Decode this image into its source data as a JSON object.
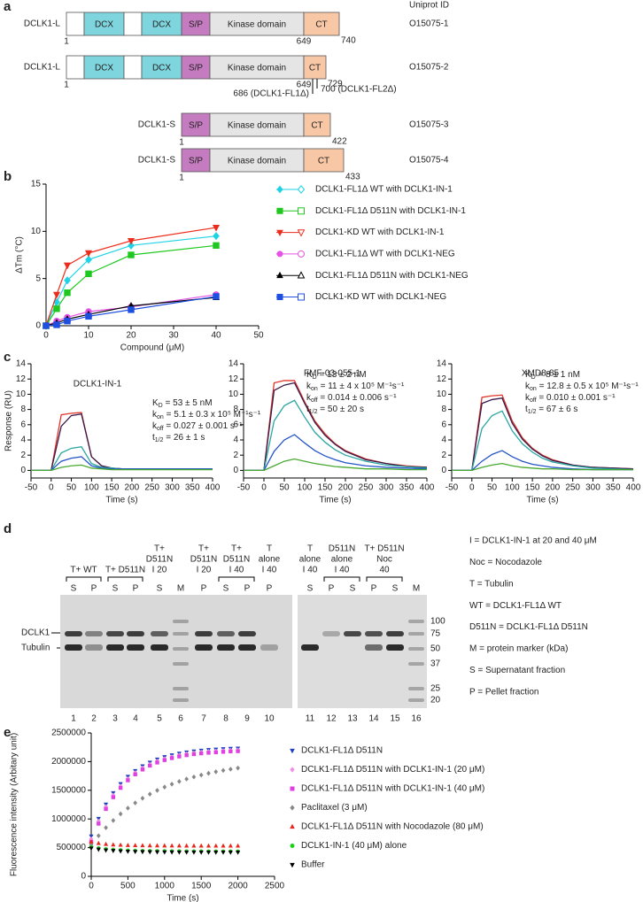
{
  "panel_a": {
    "panel_label": "a",
    "column_header": "Uniprot ID",
    "constructs": [
      {
        "name": "DCLK1-L",
        "domains": [
          "DCX",
          "DCX",
          "S/P",
          "Kinase domain",
          "CT"
        ],
        "start": 1,
        "mid": 649,
        "end": 740,
        "uniprot": "O15075-1"
      },
      {
        "name": "DCLK1-L",
        "domains": [
          "DCX",
          "DCX",
          "S/P",
          "Kinase domain",
          "CT"
        ],
        "start": 1,
        "mid": 649,
        "end": 729,
        "uniprot": "O15075-2"
      },
      {
        "name": "DCLK1-S",
        "domains": [
          "S/P",
          "Kinase domain",
          "CT"
        ],
        "start": 1,
        "end": 422,
        "uniprot": "O15075-3"
      },
      {
        "name": "DCLK1-S",
        "domains": [
          "S/P",
          "Kinase domain",
          "CT"
        ],
        "start": 1,
        "end": 433,
        "uniprot": "O15075-4"
      }
    ],
    "truncations": [
      "686 (DCLK1-FL1Δ)",
      "700 (DCLK1-FL2Δ)"
    ]
  },
  "chart_data": [
    {
      "type": "line",
      "panel_label": "b",
      "x_label": "Compound (μM)",
      "y_label": "ΔTm (°C)",
      "x": [
        0,
        2.5,
        5,
        10,
        20,
        40
      ],
      "xlim": [
        0,
        50
      ],
      "xticks": [
        0,
        10,
        20,
        30,
        40,
        50
      ],
      "ylim": [
        0,
        15
      ],
      "yticks": [
        0,
        5,
        10,
        15
      ],
      "series": [
        {
          "name": "DCLK1-FL1Δ WT with DCLK1-IN-1",
          "color": "#1fd3e6",
          "marker": "diamond",
          "values": [
            0,
            2.5,
            4.8,
            7.0,
            8.5,
            9.5
          ]
        },
        {
          "name": "DCLK1-FL1Δ D511N with DCLK1-IN-1",
          "color": "#1ec81e",
          "marker": "square",
          "values": [
            0,
            1.8,
            3.5,
            5.5,
            7.5,
            8.5
          ]
        },
        {
          "name": "DCLK1-KD WT with DCLK1-IN-1",
          "color": "#ee2a1a",
          "marker": "triangle-down",
          "values": [
            0,
            3.3,
            6.4,
            7.7,
            9.0,
            10.4
          ]
        },
        {
          "name": "DCLK1-FL1Δ WT with DCLK1-NEG",
          "color": "#e652e6",
          "marker": "circle",
          "values": [
            0,
            0.5,
            0.9,
            1.5,
            2.0,
            3.3
          ]
        },
        {
          "name": "DCLK1-FL1Δ D511N with DCLK1-NEG",
          "color": "#000000",
          "marker": "triangle",
          "values": [
            0,
            0.3,
            0.7,
            1.2,
            2.1,
            3.0
          ]
        },
        {
          "name": "DCLK1-KD WT with DCLK1-NEG",
          "color": "#1f4fe0",
          "marker": "square",
          "values": [
            0,
            0.1,
            0.5,
            1.0,
            1.7,
            3.1
          ]
        }
      ]
    },
    {
      "type": "line",
      "panel_label": "c",
      "title": "DCLK1-IN-1",
      "x_label": "Time (s)",
      "y_label": "Response (RU)",
      "x": [
        -50,
        -25,
        0,
        25,
        50,
        75,
        100,
        125,
        150,
        175,
        200,
        250,
        300,
        350,
        400
      ],
      "xlim": [
        -50,
        400
      ],
      "xticks": [
        -50,
        0,
        50,
        100,
        150,
        200,
        250,
        300,
        350,
        400
      ],
      "ylim": [
        -1,
        14
      ],
      "yticks": [
        0,
        2,
        4,
        6,
        8,
        10,
        12,
        14
      ],
      "annotations": [
        {
          "main": "K",
          "sub": "D",
          "rest": " = 53 ± 5 nM"
        },
        {
          "main": "k",
          "sub": "on",
          "rest": " = 5.1 ± 0.3 x 10⁵ M⁻¹s⁻¹"
        },
        {
          "main": "k",
          "sub": "off",
          "rest": " = 0.027 ± 0.001 s⁻¹"
        },
        {
          "main": "t",
          "sub": "1/2",
          "rest": " = 26 ± 1 s"
        }
      ],
      "series": [
        {
          "color": "#e0352b",
          "values": [
            0,
            0,
            0,
            7.3,
            7.5,
            7.6,
            1.8,
            0.6,
            0.3,
            0.2,
            0.2,
            0.2,
            0.2,
            0.2,
            0.2
          ]
        },
        {
          "color": "#3a1a4a",
          "values": [
            0,
            0,
            0,
            5.8,
            7.2,
            7.4,
            1.8,
            0.6,
            0.3,
            0.2,
            0.2,
            0.2,
            0.2,
            0.2,
            0.2
          ]
        },
        {
          "color": "#2aa6a0",
          "values": [
            0,
            0,
            0,
            2.3,
            2.9,
            3.1,
            0.9,
            0.4,
            0.3,
            0.2,
            0.2,
            0.2,
            0.2,
            0.2,
            0.2
          ]
        },
        {
          "color": "#2454c9",
          "values": [
            0,
            0,
            0,
            1.2,
            1.6,
            1.8,
            0.6,
            0.3,
            0.2,
            0.2,
            0.2,
            0.2,
            0.2,
            0.2,
            0.2
          ]
        },
        {
          "color": "#48a832",
          "values": [
            0,
            0,
            0,
            0.4,
            0.6,
            0.7,
            0.3,
            0.2,
            0.1,
            0.1,
            0.1,
            0.1,
            0.1,
            0.1,
            0.1
          ]
        }
      ]
    },
    {
      "type": "line",
      "title": "FMF-03-055-1",
      "x_label": "Time (s)",
      "x": [
        -50,
        -25,
        0,
        25,
        50,
        75,
        100,
        125,
        150,
        175,
        200,
        250,
        300,
        350,
        400
      ],
      "xlim": [
        -50,
        400
      ],
      "xticks": [
        -50,
        0,
        50,
        100,
        150,
        200,
        250,
        300,
        350,
        400
      ],
      "ylim": [
        -1,
        14
      ],
      "yticks": [
        0,
        2,
        4,
        6,
        8,
        10,
        12,
        14
      ],
      "annotations": [
        {
          "main": "K",
          "sub": "D",
          "rest": " = 13 ± 2 nM"
        },
        {
          "main": "k",
          "sub": "on",
          "rest": " = 11 ± 4 x 10⁵ M⁻¹s⁻¹"
        },
        {
          "main": "k",
          "sub": "off",
          "rest": " = 0.014 ± 0.006 s⁻¹"
        },
        {
          "main": "t",
          "sub": "1/2",
          "rest": " = 50 ± 20 s"
        }
      ],
      "series": [
        {
          "color": "#e0352b",
          "values": [
            0,
            0,
            0,
            11.5,
            11.8,
            11.8,
            9.0,
            6.5,
            4.8,
            3.5,
            2.6,
            1.5,
            0.9,
            0.6,
            0.4
          ]
        },
        {
          "color": "#3a1a4a",
          "values": [
            0,
            0,
            0,
            10.5,
            11.2,
            11.5,
            8.8,
            6.3,
            4.6,
            3.4,
            2.5,
            1.4,
            0.9,
            0.5,
            0.4
          ]
        },
        {
          "color": "#2aa6a0",
          "values": [
            0,
            0,
            0,
            6.5,
            8.5,
            9.2,
            7.0,
            5.0,
            3.7,
            2.7,
            2.0,
            1.2,
            0.7,
            0.5,
            0.3
          ]
        },
        {
          "color": "#2454c9",
          "values": [
            0,
            0,
            0,
            2.5,
            4.0,
            4.7,
            3.6,
            2.6,
            1.9,
            1.4,
            1.0,
            0.6,
            0.4,
            0.3,
            0.2
          ]
        },
        {
          "color": "#48a832",
          "values": [
            0,
            0,
            0,
            0.6,
            1.2,
            1.5,
            1.2,
            0.9,
            0.7,
            0.5,
            0.4,
            0.2,
            0.2,
            0.1,
            0.1
          ]
        }
      ]
    },
    {
      "type": "line",
      "title": "XMD8-85",
      "x_label": "Time (s)",
      "x": [
        -50,
        -25,
        0,
        25,
        50,
        75,
        100,
        125,
        150,
        175,
        200,
        250,
        300,
        350,
        400
      ],
      "xlim": [
        -50,
        400
      ],
      "xticks": [
        -50,
        0,
        50,
        100,
        150,
        200,
        250,
        300,
        350,
        400
      ],
      "ylim": [
        -1,
        14
      ],
      "yticks": [
        0,
        2,
        4,
        6,
        8,
        10,
        12,
        14
      ],
      "annotations": [
        {
          "main": "K",
          "sub": "D",
          "rest": " = 8 ± 1 nM"
        },
        {
          "main": "k",
          "sub": "on",
          "rest": " = 12.8 ± 0.5 x 10⁵ M⁻¹s⁻¹"
        },
        {
          "main": "k",
          "sub": "off",
          "rest": " = 0.010 ± 0.001 s⁻¹"
        },
        {
          "main": "t",
          "sub": "1/2",
          "rest": " = 67 ± 6 s"
        }
      ],
      "series": [
        {
          "color": "#e0352b",
          "values": [
            0,
            0,
            0,
            9.6,
            9.8,
            9.9,
            6.5,
            4.3,
            2.9,
            2.0,
            1.4,
            0.7,
            0.4,
            0.3,
            0.2
          ]
        },
        {
          "color": "#3a1a4a",
          "values": [
            0,
            0,
            0,
            8.8,
            9.3,
            9.5,
            6.2,
            4.1,
            2.8,
            1.9,
            1.3,
            0.7,
            0.4,
            0.3,
            0.2
          ]
        },
        {
          "color": "#2aa6a0",
          "values": [
            0,
            0,
            0,
            5.5,
            7.2,
            7.8,
            5.2,
            3.5,
            2.4,
            1.6,
            1.1,
            0.6,
            0.3,
            0.2,
            0.1
          ]
        },
        {
          "color": "#2454c9",
          "values": [
            0,
            0,
            0,
            1.2,
            2.1,
            2.6,
            1.8,
            1.2,
            0.8,
            0.6,
            0.4,
            0.2,
            0.1,
            0.1,
            0.1
          ]
        },
        {
          "color": "#48a832",
          "values": [
            0,
            0,
            0,
            0.4,
            0.7,
            0.9,
            0.6,
            0.4,
            0.3,
            0.2,
            0.2,
            0.1,
            0.1,
            0.1,
            0.1
          ]
        }
      ]
    },
    {
      "type": "scatter",
      "panel_label": "e",
      "x_label": "Time (s)",
      "y_label": "Fluorescence intensity (Arbitary unit)",
      "x": [
        0,
        100,
        200,
        300,
        400,
        500,
        600,
        700,
        800,
        900,
        1000,
        1100,
        1200,
        1300,
        1400,
        1500,
        1600,
        1700,
        1800,
        1900,
        2000
      ],
      "xlim": [
        0,
        2500
      ],
      "xticks": [
        0,
        500,
        1000,
        1500,
        2000,
        2500
      ],
      "ylim": [
        0,
        2500000
      ],
      "yticks": [
        0,
        500000,
        1000000,
        1500000,
        2000000,
        2500000
      ],
      "series": [
        {
          "name": "DCLK1-FL1Δ D511N",
          "color": "#1f3fbf",
          "marker": "triangle-down",
          "values": [
            700000,
            1008000,
            1256000,
            1455000,
            1613000,
            1740000,
            1841000,
            1923000,
            1988000,
            2041000,
            2083000,
            2115000,
            2143000,
            2165000,
            2182000,
            2196000,
            2207000,
            2214000,
            2222000,
            2228000,
            2233000
          ]
        },
        {
          "name": "DCLK1-FL1Δ D511N with DCLK1-IN-1 (20 μM)",
          "color": "#f28ee8",
          "marker": "diamond",
          "values": [
            650000,
            962000,
            1214000,
            1415000,
            1575000,
            1703000,
            1806000,
            1889000,
            1955000,
            2008000,
            2050000,
            2083000,
            2112000,
            2134000,
            2151000,
            2165000,
            2176000,
            2184000,
            2192000,
            2198000,
            2203000
          ]
        },
        {
          "name": "DCLK1-FL1Δ D511N with DCLK1-IN-1 (40 μM)",
          "color": "#e040e0",
          "marker": "square",
          "values": [
            600000,
            918000,
            1174000,
            1379000,
            1542000,
            1674000,
            1778000,
            1862000,
            1930000,
            1984000,
            2027000,
            2061000,
            2090000,
            2112000,
            2130000,
            2144000,
            2155000,
            2163000,
            2171000,
            2178000,
            2182000
          ]
        },
        {
          "name": "Paclitaxel (3 μM)",
          "color": "#888888",
          "marker": "diamond",
          "values": [
            550000,
            707000,
            848000,
            974000,
            1088000,
            1189000,
            1280000,
            1361000,
            1433000,
            1498000,
            1556000,
            1607000,
            1654000,
            1696000,
            1733000,
            1766000,
            1796000,
            1823000,
            1847000,
            1868000,
            1888000
          ]
        },
        {
          "name": "DCLK1-FL1Δ D511N with Nocodazole (80 μM)",
          "color": "#e8281e",
          "marker": "triangle",
          "values": [
            600000,
            575000,
            560000,
            550000,
            545000,
            540000,
            538000,
            536000,
            535000,
            534000,
            533000,
            532000,
            532000,
            531000,
            531000,
            530000,
            530000,
            530000,
            530000,
            530000,
            530000
          ]
        },
        {
          "name": "DCLK1-IN-1 (40 μM) alone",
          "color": "#1ecf1e",
          "marker": "circle",
          "values": [
            510000,
            490000,
            475000,
            465000,
            458000,
            452000,
            448000,
            445000,
            443000,
            441000,
            440000,
            439000,
            438000,
            437000,
            436000,
            436000,
            435000,
            435000,
            435000,
            435000,
            435000
          ]
        },
        {
          "name": "Buffer",
          "color": "#000000",
          "marker": "triangle-down",
          "values": [
            490000,
            470000,
            455000,
            447000,
            440000,
            435000,
            431000,
            428000,
            426000,
            424000,
            423000,
            422000,
            421000,
            421000,
            420000,
            420000,
            420000,
            420000,
            420000,
            420000,
            420000
          ]
        }
      ]
    }
  ],
  "panel_d": {
    "panel_label": "d",
    "groups": [
      [
        "T+ WT"
      ],
      [
        "T+ D511N"
      ],
      [
        "T+",
        "D511N",
        "I 20"
      ],
      [
        "T+",
        "D511N",
        "I 20"
      ],
      [
        "T+",
        "D511N",
        "I 40"
      ],
      [
        "T",
        "alone",
        "I 40"
      ],
      [
        "T",
        "alone",
        "I 40"
      ],
      [
        "D511N",
        "alone",
        "I 40"
      ],
      [
        "T+ D511N",
        "Noc",
        "40"
      ]
    ],
    "lane_letters": [
      "S",
      "P",
      "S",
      "P",
      "S",
      "M",
      "P",
      "S",
      "P",
      "P",
      "S",
      "P",
      "S",
      "P",
      "S",
      "M"
    ],
    "lane_numbers": [
      1,
      2,
      3,
      4,
      5,
      6,
      7,
      8,
      9,
      10,
      11,
      12,
      13,
      14,
      15,
      16
    ],
    "band_labels": [
      "DCLK1",
      "Tubulin"
    ],
    "marker_sizes": [
      100,
      75,
      50,
      37,
      25,
      20
    ],
    "definitions": [
      "I = DCLK1-IN-1 at 20 and 40 μM",
      "Noc = Nocodazole",
      "T = Tubulin",
      "WT = DCLK1-FL1Δ WT",
      "D511N = DCLK1-FL1Δ D511N",
      "M = protein marker (kDa)",
      "S = Supernatant fraction",
      "P = Pellet fraction"
    ]
  }
}
